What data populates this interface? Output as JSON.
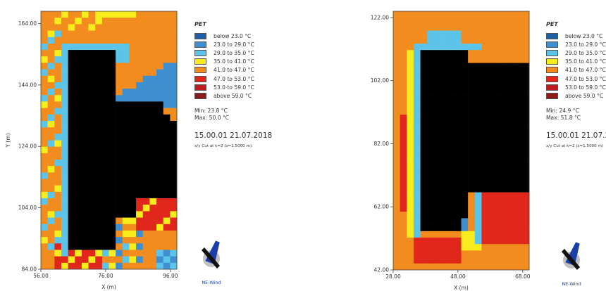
{
  "legend_title": "PET",
  "legend_items": [
    {
      "label": "below 23.0 °C",
      "color": "#1f5fa8"
    },
    {
      "label": "23.0 to 29.0 °C",
      "color": "#3f8fd0"
    },
    {
      "label": "29.0 to 35.0 °C",
      "color": "#5cc4e8"
    },
    {
      "label": "35.0 to 41.0 °C",
      "color": "#f7ec1c"
    },
    {
      "label": "41.0 to 47.0 °C",
      "color": "#f28c1e"
    },
    {
      "label": "47.0 to 53.0 °C",
      "color": "#e1261c"
    },
    {
      "label": "53.0 to 59.0 °C",
      "color": "#c01a20"
    },
    {
      "label": "above 59.0 °C",
      "color": "#8b1a1a"
    }
  ],
  "building_color": "#000000",
  "timestamp": "15.00.01 21.07.2018",
  "cut_label": "x/y Cut at k=2 (z=1.5000 m)",
  "compass_label": "NE-Wind",
  "panels": [
    {
      "min_label": "Min: 23.8 °C",
      "max_label": "Max: 50.0 °C"
    },
    {
      "min_label": "Min: 24.9 °C",
      "max_label": "Max: 51.8 °C"
    }
  ],
  "chart_data": [
    {
      "type": "heatmap",
      "title": "",
      "xlabel": "X (m)",
      "ylabel": "Y (m)",
      "xlim": [
        56,
        98
      ],
      "ylim": [
        84,
        168
      ],
      "xticks": [
        "56.00",
        "76.00",
        "96.00"
      ],
      "xtick_values": [
        56,
        76,
        96
      ],
      "yticks": [
        "84.00",
        "104.00",
        "124.00",
        "144.00",
        "164.00"
      ],
      "ytick_values": [
        84,
        104,
        124,
        144,
        164
      ],
      "grid_cols": 20,
      "grid_rows": 40,
      "min_value": 23.8,
      "max_value": 50.0
    },
    {
      "type": "heatmap",
      "title": "",
      "xlabel": "X (m)",
      "ylabel": "",
      "xlim": [
        28,
        70
      ],
      "ylim": [
        42,
        124
      ],
      "xticks": [
        "28.00",
        "48.00",
        "68.00"
      ],
      "xtick_values": [
        28,
        48,
        68
      ],
      "yticks": [
        "42.00",
        "62.00",
        "82.00",
        "102.00",
        "122.00"
      ],
      "ytick_values": [
        42,
        62,
        82,
        102,
        122
      ],
      "grid_cols": 20,
      "grid_rows": 40,
      "min_value": 24.9,
      "max_value": 51.8
    }
  ]
}
